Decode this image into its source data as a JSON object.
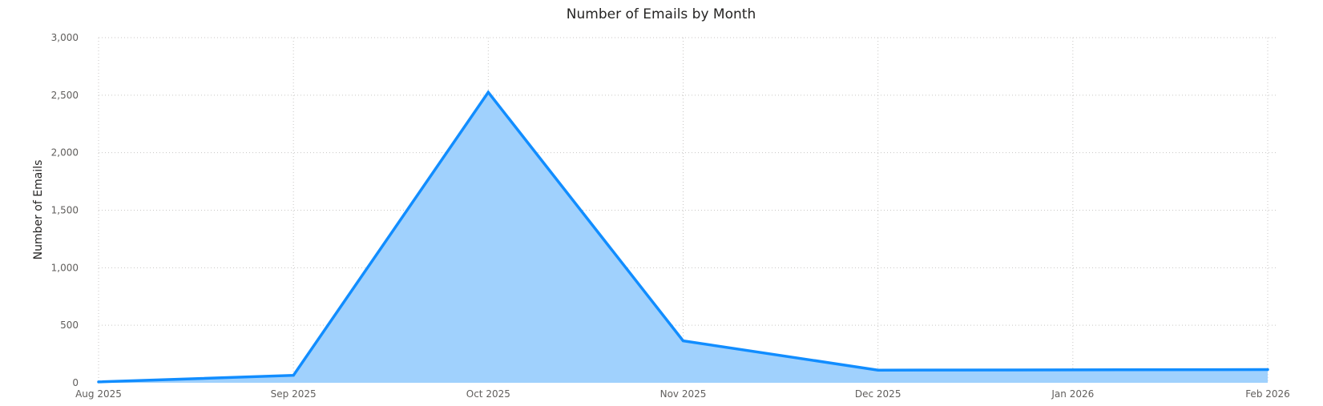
{
  "chart_data": {
    "type": "area",
    "title": "Number of Emails by Month",
    "xlabel": "",
    "ylabel": "Number of Emails",
    "categories": [
      "Aug 2025",
      "Sep 2025",
      "Oct 2025",
      "Nov 2025",
      "Dec 2025",
      "Jan 2026",
      "Feb 2026"
    ],
    "series": [
      {
        "name": "",
        "x": [
          "Aug 2025",
          "Sep 2025",
          "Oct 2025",
          "Nov 2025",
          "Dec 2025",
          "Feb 2026"
        ],
        "values": [
          8,
          65,
          2525,
          365,
          110,
          115
        ]
      }
    ],
    "ylim": [
      0,
      3000
    ],
    "yticks": [
      0,
      500,
      1000,
      1500,
      2000,
      2500,
      3000
    ],
    "ytick_labels": [
      "0",
      "500",
      "1,000",
      "1,500",
      "2,000",
      "2,500",
      "3,000"
    ],
    "grid": true,
    "legend": "none",
    "colors": {
      "line": "#118dff",
      "fill": "#a0d1fd",
      "grid": "#c8c6c4",
      "text": "#252423",
      "tick_text": "#605e5c"
    }
  }
}
